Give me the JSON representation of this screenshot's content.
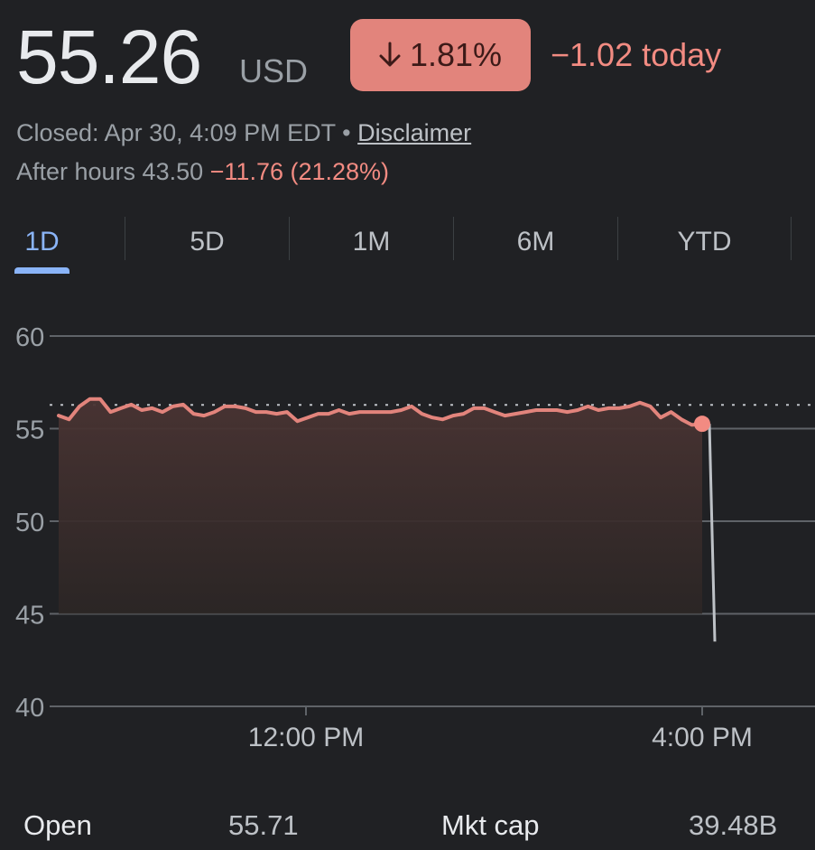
{
  "quote": {
    "price": "55.26",
    "currency": "USD",
    "change_percent": "1.81%",
    "change_today": "−1.02 today",
    "status_prefix": "Closed: Apr 30, 4:09 PM EDT • ",
    "disclaimer": "Disclaimer",
    "after_hours_label": "After hours 43.50",
    "after_hours_change": "−11.76 (21.28%)",
    "down_color": "#f28b82",
    "badge_color": "#e2847c"
  },
  "tabs": [
    {
      "label": "1D",
      "active": true
    },
    {
      "label": "5D",
      "active": false
    },
    {
      "label": "1M",
      "active": false
    },
    {
      "label": "6M",
      "active": false
    },
    {
      "label": "YTD",
      "active": false
    }
  ],
  "chart_data": {
    "type": "line",
    "ylim": [
      40,
      60
    ],
    "yticks": [
      60,
      55,
      50,
      45,
      40
    ],
    "xticks": [
      "12:00 PM",
      "4:00 PM"
    ],
    "previous_close": 56.28,
    "series": [
      {
        "values": [
          55.7,
          55.5,
          56.2,
          56.6,
          56.6,
          55.9,
          56.1,
          56.3,
          56.0,
          56.1,
          55.9,
          56.2,
          56.3,
          55.8,
          55.7,
          55.9,
          56.2,
          56.2,
          56.1,
          55.9,
          55.9,
          55.8,
          55.9,
          55.4,
          55.6,
          55.8,
          55.8,
          56.0,
          55.8,
          55.9,
          55.9,
          55.9,
          55.9,
          56.0,
          56.2,
          55.8,
          55.6,
          55.5,
          55.7,
          55.8,
          56.1,
          56.1,
          55.9,
          55.7,
          55.8,
          55.9,
          56.0,
          56.0,
          56.0,
          55.9,
          56.0,
          56.2,
          56.0,
          56.1,
          56.1,
          56.2,
          56.4,
          56.2,
          55.6,
          55.9,
          55.5,
          55.2,
          55.26
        ]
      },
      {
        "values": [
          55.26,
          43.5
        ]
      }
    ]
  },
  "stats": {
    "open_label": "Open",
    "open_value": "55.71",
    "mktcap_label": "Mkt cap",
    "mktcap_value": "39.48B"
  }
}
